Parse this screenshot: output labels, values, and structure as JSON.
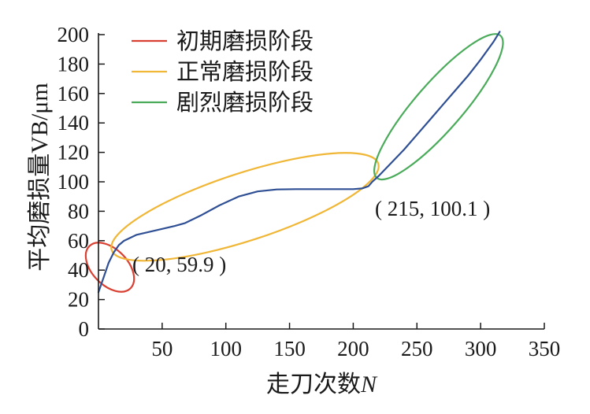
{
  "chart_data": {
    "type": "line",
    "title": "",
    "xlabel": "走刀次数",
    "xlabel_italic_suffix": "N",
    "ylabel": "平均磨损量VB/μm",
    "xlim": [
      0,
      350
    ],
    "ylim": [
      0,
      200
    ],
    "x_ticks": [
      50,
      100,
      150,
      200,
      250,
      300,
      350
    ],
    "y_ticks": [
      0,
      20,
      40,
      60,
      80,
      100,
      120,
      140,
      160,
      180,
      200
    ],
    "grid": false,
    "legend_position": "top-left",
    "colors": {
      "curve": "#2f4f94",
      "initial": "#d94032",
      "normal": "#f0b636",
      "severe": "#4aab5a",
      "axis": "#1a1a1a"
    },
    "series": [
      {
        "x": [
          0,
          4,
          8,
          12,
          16,
          20,
          25,
          30,
          40,
          50,
          60,
          68,
          80,
          95,
          110,
          125,
          140,
          155,
          170,
          185,
          200,
          207,
          212,
          215,
          220,
          230,
          240,
          250,
          260,
          270,
          280,
          290,
          300,
          310,
          315
        ],
        "y": [
          25,
          35,
          45,
          52,
          57,
          59.9,
          62,
          64,
          66,
          68,
          70,
          72,
          77,
          84,
          90,
          93.5,
          94.8,
          95,
          95,
          95,
          95,
          95.5,
          97,
          100.1,
          104,
          113,
          122,
          132,
          142,
          152,
          162,
          172,
          183,
          195,
          202
        ]
      }
    ],
    "regions": [
      {
        "label": "初期磨损阶段",
        "color_key": "initial",
        "cx": 9,
        "cy": 42,
        "rx": 14,
        "ry": 20,
        "angle": -44
      },
      {
        "label": "正常磨损阶段",
        "color_key": "normal",
        "cx": 115,
        "cy": 83,
        "rx": 110,
        "ry": 23,
        "angle": -18
      },
      {
        "label": "剧烈磨损阶段",
        "color_key": "severe",
        "cx": 267,
        "cy": 151,
        "rx": 74,
        "ry": 16,
        "angle": -49
      }
    ],
    "annotations": [
      {
        "text": "( 20, 59.9 )"
      },
      {
        "text": "( 215, 100.1 )"
      }
    ]
  }
}
